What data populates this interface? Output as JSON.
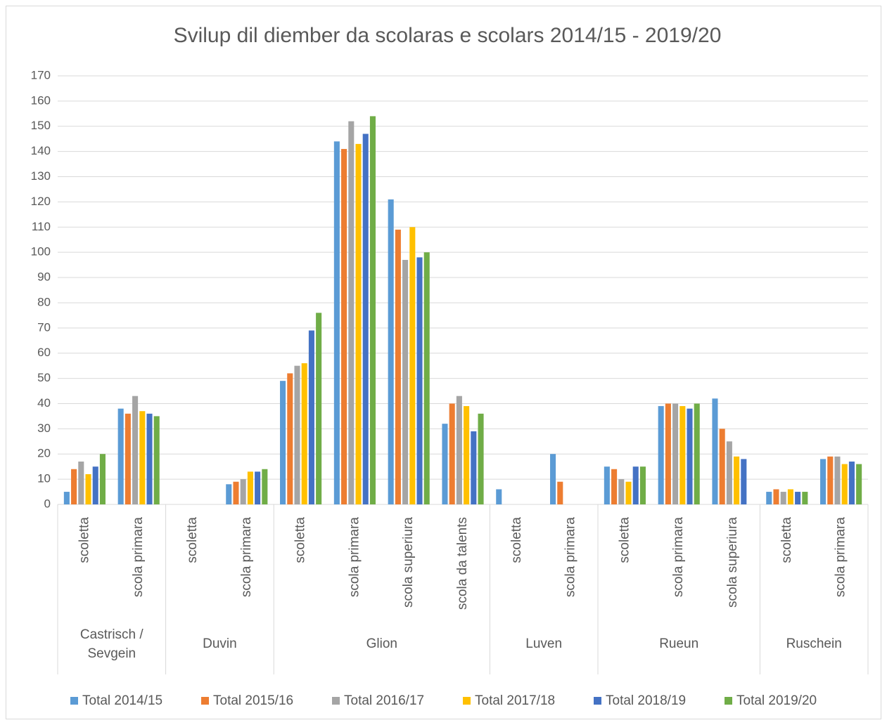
{
  "chart_data": {
    "type": "bar",
    "title": "Svilup dil diember da scolaras e scolars 2014/15 - 2019/20",
    "groups": [
      {
        "name": "Castrisch / Sevgein",
        "categories": [
          "scoletta",
          "scola primara"
        ]
      },
      {
        "name": "Duvin",
        "categories": [
          "scoletta",
          "scola primara"
        ]
      },
      {
        "name": "Glion",
        "categories": [
          "scoletta",
          "scola primara",
          "scola superiura",
          "scola da talents"
        ]
      },
      {
        "name": "Luven",
        "categories": [
          "scoletta",
          "scola primara"
        ]
      },
      {
        "name": "Rueun",
        "categories": [
          "scoletta",
          "scola primara",
          "scola superiura"
        ]
      },
      {
        "name": "Ruschein",
        "categories": [
          "scoletta",
          "scola primara"
        ]
      }
    ],
    "series": [
      {
        "name": "Total 2014/15",
        "color": "#5b9bd5",
        "values": [
          5,
          38,
          null,
          8,
          49,
          144,
          121,
          32,
          6,
          20,
          15,
          39,
          42,
          5,
          18
        ]
      },
      {
        "name": "Total 2015/16",
        "color": "#ed7d31",
        "values": [
          14,
          36,
          null,
          9,
          52,
          141,
          109,
          40,
          null,
          9,
          14,
          40,
          30,
          6,
          19
        ]
      },
      {
        "name": "Total 2016/17",
        "color": "#a5a5a5",
        "values": [
          17,
          43,
          null,
          10,
          55,
          152,
          97,
          43,
          null,
          null,
          10,
          40,
          25,
          5,
          19
        ]
      },
      {
        "name": "Total 2017/18",
        "color": "#ffc000",
        "values": [
          12,
          37,
          null,
          13,
          56,
          143,
          110,
          39,
          null,
          null,
          9,
          39,
          19,
          6,
          16
        ]
      },
      {
        "name": "Total 2018/19",
        "color": "#4472c4",
        "values": [
          15,
          36,
          null,
          13,
          69,
          147,
          98,
          29,
          null,
          null,
          15,
          38,
          18,
          5,
          17
        ]
      },
      {
        "name": "Total 2019/20",
        "color": "#70ad47",
        "values": [
          20,
          35,
          null,
          14,
          76,
          154,
          100,
          36,
          null,
          null,
          15,
          40,
          null,
          5,
          16
        ]
      }
    ],
    "ylim": [
      0,
      170
    ],
    "yticks": [
      0,
      10,
      20,
      30,
      40,
      50,
      60,
      70,
      80,
      90,
      100,
      110,
      120,
      130,
      140,
      150,
      160,
      170
    ],
    "grid": true,
    "legend": "bottom"
  }
}
